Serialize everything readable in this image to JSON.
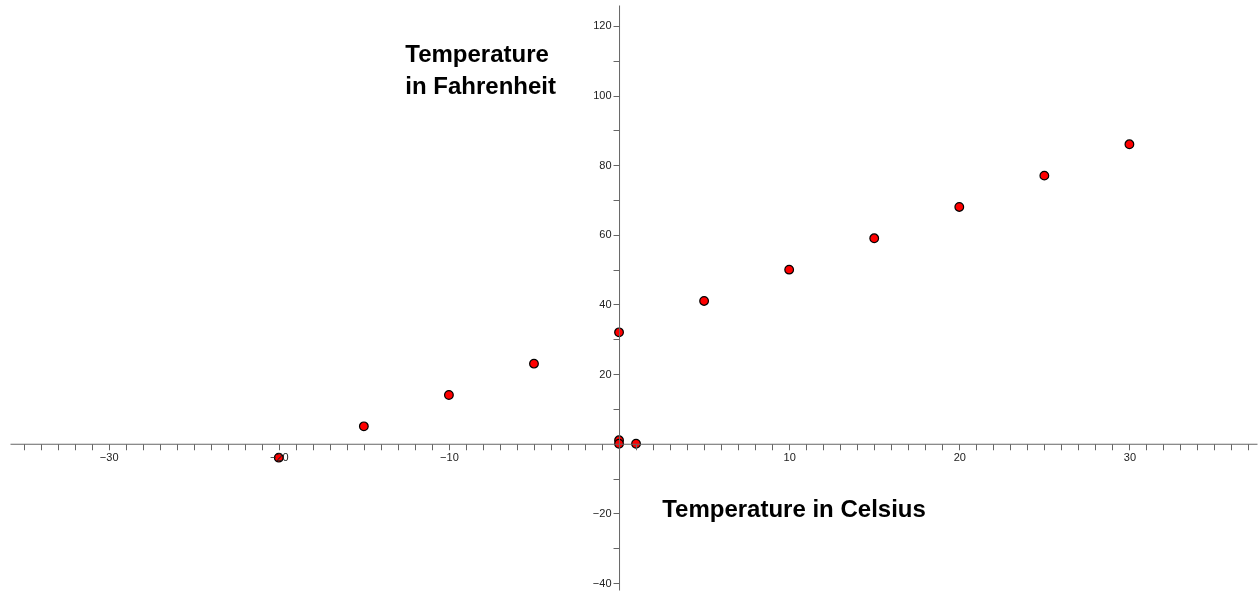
{
  "chart_data": {
    "type": "scatter",
    "xlabel": "Temperature in Celsius",
    "ylabel": "Temperature\nin Fahrenheit",
    "x": [
      -20,
      -15,
      -10,
      -5,
      0,
      0,
      0,
      1,
      5,
      10,
      15,
      20,
      25,
      30
    ],
    "series": [
      {
        "color": "#ff0000",
        "values": [
          -4,
          5,
          14,
          23,
          32,
          1,
          0,
          0,
          41,
          50,
          59,
          68,
          77,
          86
        ]
      }
    ],
    "marker": "circle",
    "grid": false,
    "xlim": [
      -35.8,
      37.5
    ],
    "ylim": [
      -42,
      126
    ],
    "xticks": [
      {
        "value": -35,
        "label": null
      },
      {
        "value": -34,
        "label": null
      },
      {
        "value": -33,
        "label": null
      },
      {
        "value": -32,
        "label": null
      },
      {
        "value": -31,
        "label": null
      },
      -30,
      {
        "value": -29,
        "label": null
      },
      {
        "value": -28,
        "label": null
      },
      {
        "value": -27,
        "label": null
      },
      {
        "value": -26,
        "label": null
      },
      {
        "value": -25,
        "label": null
      },
      {
        "value": -24,
        "label": null
      },
      {
        "value": -23,
        "label": null
      },
      {
        "value": -22,
        "label": null
      },
      {
        "value": -21,
        "label": null
      },
      -20,
      {
        "value": -19,
        "label": null
      },
      {
        "value": -18,
        "label": null
      },
      {
        "value": -17,
        "label": null
      },
      {
        "value": -16,
        "label": null
      },
      {
        "value": -15,
        "label": null
      },
      {
        "value": -14,
        "label": null
      },
      {
        "value": -13,
        "label": null
      },
      {
        "value": -12,
        "label": null
      },
      {
        "value": -11,
        "label": null
      },
      -10,
      {
        "value": -9,
        "label": null
      },
      {
        "value": -8,
        "label": null
      },
      {
        "value": -7,
        "label": null
      },
      {
        "value": -6,
        "label": null
      },
      {
        "value": -5,
        "label": null
      },
      {
        "value": -4,
        "label": null
      },
      {
        "value": -3,
        "label": null
      },
      {
        "value": -2,
        "label": null
      },
      {
        "value": -1,
        "label": null
      },
      {
        "value": 1,
        "label": null
      },
      {
        "value": 2,
        "label": null
      },
      {
        "value": 3,
        "label": null
      },
      {
        "value": 4,
        "label": null
      },
      {
        "value": 5,
        "label": null
      },
      {
        "value": 6,
        "label": null
      },
      {
        "value": 7,
        "label": null
      },
      {
        "value": 8,
        "label": null
      },
      {
        "value": 9,
        "label": null
      },
      10,
      {
        "value": 11,
        "label": null
      },
      {
        "value": 12,
        "label": null
      },
      {
        "value": 13,
        "label": null
      },
      {
        "value": 14,
        "label": null
      },
      {
        "value": 15,
        "label": null
      },
      {
        "value": 16,
        "label": null
      },
      {
        "value": 17,
        "label": null
      },
      {
        "value": 18,
        "label": null
      },
      {
        "value": 19,
        "label": null
      },
      20,
      {
        "value": 21,
        "label": null
      },
      {
        "value": 22,
        "label": null
      },
      {
        "value": 23,
        "label": null
      },
      {
        "value": 24,
        "label": null
      },
      {
        "value": 25,
        "label": null
      },
      {
        "value": 26,
        "label": null
      },
      {
        "value": 27,
        "label": null
      },
      {
        "value": 28,
        "label": null
      },
      {
        "value": 29,
        "label": null
      },
      30,
      {
        "value": 31,
        "label": null
      },
      {
        "value": 32,
        "label": null
      },
      {
        "value": 33,
        "label": null
      },
      {
        "value": 34,
        "label": null
      },
      {
        "value": 35,
        "label": null
      },
      {
        "value": 36,
        "label": null
      },
      {
        "value": 37,
        "label": null
      }
    ],
    "yticks": [
      -40,
      {
        "value": -30,
        "label": null
      },
      -20,
      {
        "value": -10,
        "label": null
      },
      {
        "value": 10,
        "label": null
      },
      20,
      {
        "value": 30,
        "label": null
      },
      40,
      {
        "value": 50,
        "label": null
      },
      60,
      {
        "value": 70,
        "label": null
      },
      80,
      {
        "value": 90,
        "label": null
      },
      100,
      {
        "value": 110,
        "label": null
      },
      120
    ]
  }
}
